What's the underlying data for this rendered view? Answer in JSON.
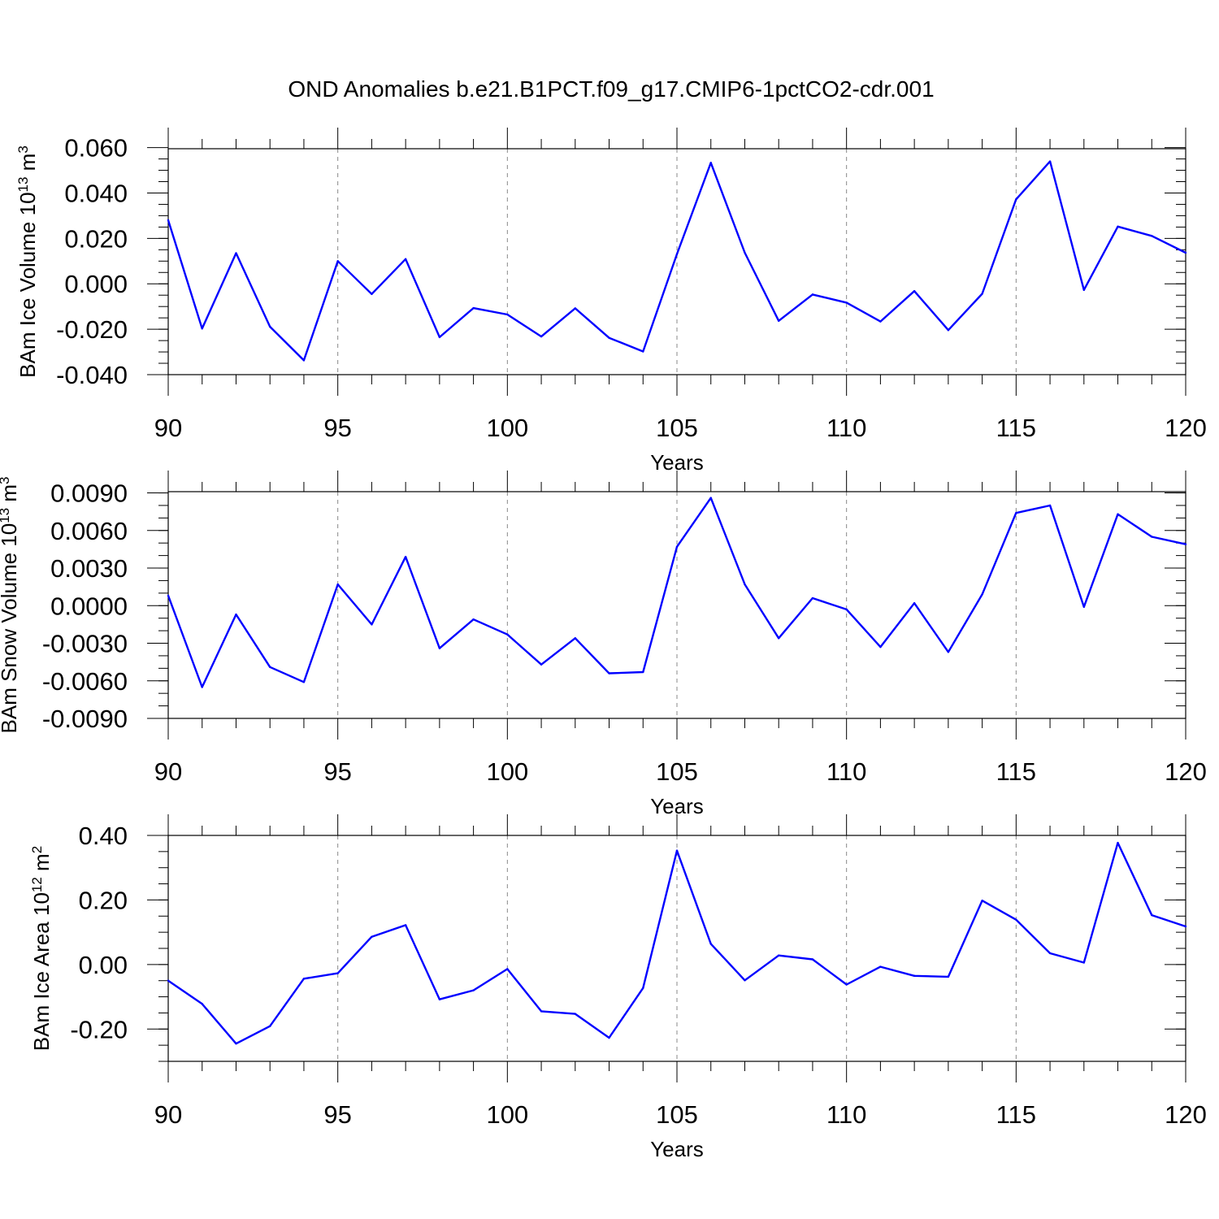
{
  "title": "OND Anomalies b.e21.B1PCT.f09_g17.CMIP6-1pctCO2-cdr.001",
  "line_color": "#0000ff",
  "chart_data": [
    {
      "type": "line",
      "ylabel": "BAm Ice Volume 10",
      "ylabel_exp": "13",
      "ylabel_unit": "m",
      "ylabel_unit_exp": "3",
      "xlabel": "Years",
      "xlim": [
        90,
        120
      ],
      "ylim": [
        -0.04,
        0.06
      ],
      "ylim_plot": [
        -0.04,
        0.0595
      ],
      "x_ticks": [
        90,
        95,
        100,
        105,
        110,
        115,
        120
      ],
      "y_ticks": [
        -0.04,
        -0.02,
        0.0,
        0.02,
        0.04,
        0.06
      ],
      "y_tick_labels": [
        "-0.040",
        "-0.020",
        "0.000",
        "0.020",
        "0.040",
        "0.060"
      ],
      "y_minor_step": 0.005,
      "grid_x": [
        95,
        100,
        105,
        110,
        115
      ],
      "x": [
        90,
        91,
        92,
        93,
        94,
        95,
        96,
        97,
        98,
        99,
        100,
        101,
        102,
        103,
        104,
        105,
        106,
        107,
        108,
        109,
        110,
        111,
        112,
        113,
        114,
        115,
        116,
        117,
        118,
        119,
        120
      ],
      "values": [
        0.028,
        -0.0197,
        0.0135,
        -0.0189,
        -0.0337,
        0.01,
        -0.0045,
        0.0109,
        -0.0235,
        -0.0107,
        -0.0135,
        -0.0232,
        -0.0108,
        -0.0238,
        -0.0298,
        0.0131,
        0.0533,
        0.0137,
        -0.0163,
        -0.0047,
        -0.0083,
        -0.0166,
        -0.0032,
        -0.0204,
        -0.0044,
        0.0372,
        0.0539,
        -0.0027,
        0.0252,
        0.0211,
        0.0137
      ]
    },
    {
      "type": "line",
      "ylabel": "BAm Snow Volume 10",
      "ylabel_exp": "13",
      "ylabel_unit": "m",
      "ylabel_unit_exp": "3",
      "xlabel": "Years",
      "xlim": [
        90,
        120
      ],
      "ylim": [
        -0.009,
        0.009
      ],
      "ylim_plot": [
        -0.009,
        0.0091
      ],
      "x_ticks": [
        90,
        95,
        100,
        105,
        110,
        115,
        120
      ],
      "y_ticks": [
        -0.009,
        -0.006,
        -0.003,
        0.0,
        0.003,
        0.006,
        0.009
      ],
      "y_tick_labels": [
        "-0.0090",
        "-0.0060",
        "-0.0030",
        "0.0000",
        "0.0030",
        "0.0060",
        "0.0090"
      ],
      "y_minor_step": 0.001,
      "grid_x": [
        95,
        100,
        105,
        110,
        115
      ],
      "x": [
        90,
        91,
        92,
        93,
        94,
        95,
        96,
        97,
        98,
        99,
        100,
        101,
        102,
        103,
        104,
        105,
        106,
        107,
        108,
        109,
        110,
        111,
        112,
        113,
        114,
        115,
        116,
        117,
        118,
        119,
        120
      ],
      "values": [
        0.0008,
        -0.0065,
        -0.0007,
        -0.0049,
        -0.0061,
        0.0017,
        -0.0015,
        0.0039,
        -0.0034,
        -0.0011,
        -0.0023,
        -0.0047,
        -0.0026,
        -0.0054,
        -0.0053,
        0.0047,
        0.0086,
        0.0017,
        -0.0026,
        0.0006,
        -0.0003,
        -0.0033,
        0.0002,
        -0.0037,
        0.0009,
        0.0074,
        0.008,
        -0.0001,
        0.0073,
        0.0055,
        0.0049
      ]
    },
    {
      "type": "line",
      "ylabel": "BAm Ice Area 10",
      "ylabel_exp": "12",
      "ylabel_unit": "m",
      "ylabel_unit_exp": "2",
      "xlabel": "Years",
      "xlim": [
        90,
        120
      ],
      "ylim": [
        -0.3,
        0.4
      ],
      "ylim_plot": [
        -0.3,
        0.4
      ],
      "x_ticks": [
        90,
        95,
        100,
        105,
        110,
        115,
        120
      ],
      "y_ticks": [
        -0.2,
        0.0,
        0.2,
        0.4
      ],
      "y_tick_labels": [
        "-0.20",
        "0.00",
        "0.20",
        "0.40"
      ],
      "y_minor_step": 0.05,
      "grid_x": [
        95,
        100,
        105,
        110,
        115
      ],
      "x": [
        90,
        91,
        92,
        93,
        94,
        95,
        96,
        97,
        98,
        99,
        100,
        101,
        102,
        103,
        104,
        105,
        106,
        107,
        108,
        109,
        110,
        111,
        112,
        113,
        114,
        115,
        116,
        117,
        118,
        119,
        120
      ],
      "values": [
        -0.05,
        -0.122,
        -0.245,
        -0.191,
        -0.044,
        -0.027,
        0.086,
        0.122,
        -0.108,
        -0.08,
        -0.014,
        -0.145,
        -0.153,
        -0.227,
        -0.073,
        0.353,
        0.064,
        -0.049,
        0.028,
        0.016,
        -0.062,
        -0.007,
        -0.035,
        -0.038,
        0.198,
        0.139,
        0.035,
        0.006,
        0.377,
        0.153,
        0.118
      ]
    }
  ]
}
